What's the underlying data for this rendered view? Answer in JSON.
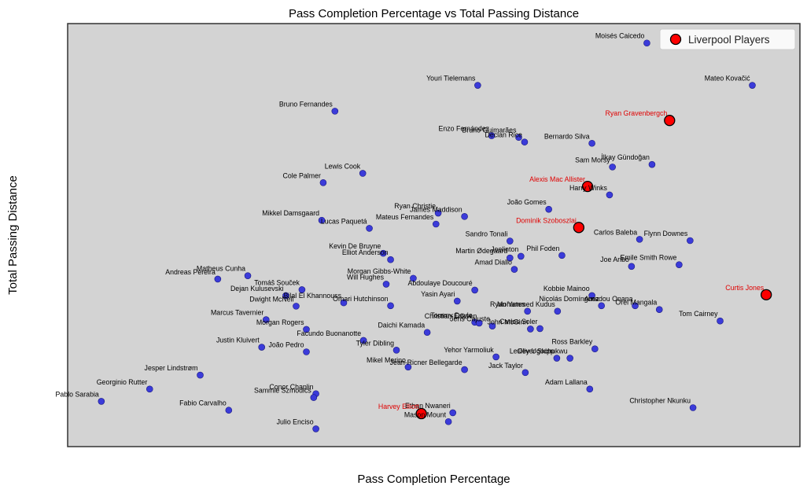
{
  "chart_data": {
    "type": "scatter",
    "title": "Pass Completion Percentage vs Total Passing Distance",
    "xlabel": "Pass Completion Percentage",
    "ylabel": "Total Passing Distance",
    "xlim": [
      0,
      1000
    ],
    "ylim": [
      0,
      1000
    ],
    "grid": false,
    "legend_position": "top-right",
    "background_color": "#d3d3d3",
    "point_color": "#3b3bd9",
    "highlight_color": "#ff0000",
    "legend": [
      {
        "label": "Liverpool Players",
        "color": "#ff0000"
      }
    ],
    "series": [
      {
        "name": "",
        "points": [
          {
            "name": "Moisés Caicedo",
            "x": 791,
            "y": 954
          },
          {
            "name": "Youri Tielemans",
            "x": 560,
            "y": 854
          },
          {
            "name": "Mateo Kovačić",
            "x": 935,
            "y": 854
          },
          {
            "name": "Bruno Fernandes",
            "x": 365,
            "y": 793
          },
          {
            "name": "Enzo Fernández",
            "x": 579,
            "y": 735
          },
          {
            "name": "Bruno Guimarães",
            "x": 616,
            "y": 731
          },
          {
            "name": "Declan Rice",
            "x": 624,
            "y": 720
          },
          {
            "name": "Bernardo Silva",
            "x": 716,
            "y": 717
          },
          {
            "name": "İlkay Gündoğan",
            "x": 798,
            "y": 667
          },
          {
            "name": "Sam Morsy",
            "x": 744,
            "y": 661
          },
          {
            "name": "Lewis Cook",
            "x": 403,
            "y": 646
          },
          {
            "name": "Cole Palmer",
            "x": 349,
            "y": 624
          },
          {
            "name": "Harry Winks",
            "x": 740,
            "y": 595
          },
          {
            "name": "João Gomes",
            "x": 657,
            "y": 561
          },
          {
            "name": "Ryan Christie",
            "x": 506,
            "y": 552
          },
          {
            "name": "James Maddison",
            "x": 542,
            "y": 544
          },
          {
            "name": "Mikkel Damsgaard",
            "x": 347,
            "y": 535
          },
          {
            "name": "Mateus Fernandes",
            "x": 503,
            "y": 526
          },
          {
            "name": "Lucas Paquetá",
            "x": 412,
            "y": 516
          },
          {
            "name": "Carlos Baleba",
            "x": 781,
            "y": 490
          },
          {
            "name": "Flynn Downes",
            "x": 850,
            "y": 487
          },
          {
            "name": "Sandro Tonali",
            "x": 604,
            "y": 486
          },
          {
            "name": "Kevin De Bruyne",
            "x": 431,
            "y": 457
          },
          {
            "name": "Phil Foden",
            "x": 675,
            "y": 452
          },
          {
            "name": "Joelinton",
            "x": 619,
            "y": 450
          },
          {
            "name": "Martin Ødegaard",
            "x": 604,
            "y": 446
          },
          {
            "name": "Elliot Anderson",
            "x": 441,
            "y": 442
          },
          {
            "name": "Emile Smith Rowe",
            "x": 835,
            "y": 430
          },
          {
            "name": "Joe Aribo",
            "x": 770,
            "y": 426
          },
          {
            "name": "Amad Diallo",
            "x": 610,
            "y": 419
          },
          {
            "name": "Matheus Cunha",
            "x": 246,
            "y": 404
          },
          {
            "name": "Morgan Gibbs-White",
            "x": 472,
            "y": 398
          },
          {
            "name": "Andreas Pereira",
            "x": 205,
            "y": 396
          },
          {
            "name": "Will Hughes",
            "x": 435,
            "y": 384
          },
          {
            "name": "Abdoulaye Doucouré",
            "x": 556,
            "y": 370
          },
          {
            "name": "Tomáš Souček",
            "x": 320,
            "y": 371
          },
          {
            "name": "Kobbie Mainoo",
            "x": 716,
            "y": 357
          },
          {
            "name": "Dejan Kulusevski",
            "x": 298,
            "y": 357
          },
          {
            "name": "Bilal El Khannouss",
            "x": 377,
            "y": 340
          },
          {
            "name": "Yasin Ayari",
            "x": 532,
            "y": 344
          },
          {
            "name": "Omari Hutchinson",
            "x": 441,
            "y": 333
          },
          {
            "name": "Dwight McNeil",
            "x": 312,
            "y": 332
          },
          {
            "name": "Amadou Onana",
            "x": 775,
            "y": 333
          },
          {
            "name": "Nicolás Domínguez",
            "x": 729,
            "y": 333
          },
          {
            "name": "Orel Mangala",
            "x": 808,
            "y": 324
          },
          {
            "name": "Ryan Yates",
            "x": 628,
            "y": 320
          },
          {
            "name": "Mohammed Kudus",
            "x": 669,
            "y": 320
          },
          {
            "name": "Tom Cairney",
            "x": 891,
            "y": 297
          },
          {
            "name": "Marcus Tavernier",
            "x": 271,
            "y": 300
          },
          {
            "name": "Tommy Doyle",
            "x": 556,
            "y": 294
          },
          {
            "name": "Christian Eriksen",
            "x": 562,
            "y": 292
          },
          {
            "name": "Jens Cajuste",
            "x": 580,
            "y": 285
          },
          {
            "name": "John McGinn",
            "x": 632,
            "y": 278
          },
          {
            "name": "Carlos Soler",
            "x": 645,
            "y": 279
          },
          {
            "name": "Morgan Rogers",
            "x": 326,
            "y": 277
          },
          {
            "name": "Daichi Kamada",
            "x": 491,
            "y": 270
          },
          {
            "name": "Facundo Buonanotte",
            "x": 404,
            "y": 251
          },
          {
            "name": "Justin Kluivert",
            "x": 265,
            "y": 235
          },
          {
            "name": "Ross Barkley",
            "x": 720,
            "y": 231
          },
          {
            "name": "Tyler Dibling",
            "x": 449,
            "y": 228
          },
          {
            "name": "João Pedro",
            "x": 326,
            "y": 224
          },
          {
            "name": "Yehor Yarmoliuk",
            "x": 585,
            "y": 212
          },
          {
            "name": "Oliver Skipp",
            "x": 668,
            "y": 209
          },
          {
            "name": "Lesley Ugochukwu",
            "x": 686,
            "y": 209
          },
          {
            "name": "Mikel Merino",
            "x": 465,
            "y": 188
          },
          {
            "name": "Jean-Ricner Bellegarde",
            "x": 542,
            "y": 182
          },
          {
            "name": "Jack Taylor",
            "x": 625,
            "y": 175
          },
          {
            "name": "Jesper Lindstrøm",
            "x": 181,
            "y": 169
          },
          {
            "name": "Georginio Rutter",
            "x": 112,
            "y": 136
          },
          {
            "name": "Adam Lallana",
            "x": 713,
            "y": 136
          },
          {
            "name": "Conor Chaplin",
            "x": 339,
            "y": 125
          },
          {
            "name": "Sammie Szmodics",
            "x": 336,
            "y": 116
          },
          {
            "name": "Pablo Sarabia",
            "x": 46,
            "y": 107
          },
          {
            "name": "Christopher Nkunku",
            "x": 854,
            "y": 92
          },
          {
            "name": "Fabio Carvalho",
            "x": 220,
            "y": 86
          },
          {
            "name": "Ethan Nwaneri",
            "x": 526,
            "y": 80
          },
          {
            "name": "Mason Mount",
            "x": 520,
            "y": 59
          },
          {
            "name": "Julio Enciso",
            "x": 339,
            "y": 42
          }
        ]
      },
      {
        "name": "Liverpool Players",
        "highlight": true,
        "points": [
          {
            "name": "Ryan Gravenbergch",
            "x": 822,
            "y": 771
          },
          {
            "name": "Alexis Mac Allister",
            "x": 710,
            "y": 615
          },
          {
            "name": "Dominik Szoboszlai",
            "x": 698,
            "y": 518
          },
          {
            "name": "Curtis Jones",
            "x": 954,
            "y": 359
          },
          {
            "name": "Harvey Elliott",
            "x": 483,
            "y": 78
          }
        ]
      }
    ]
  }
}
